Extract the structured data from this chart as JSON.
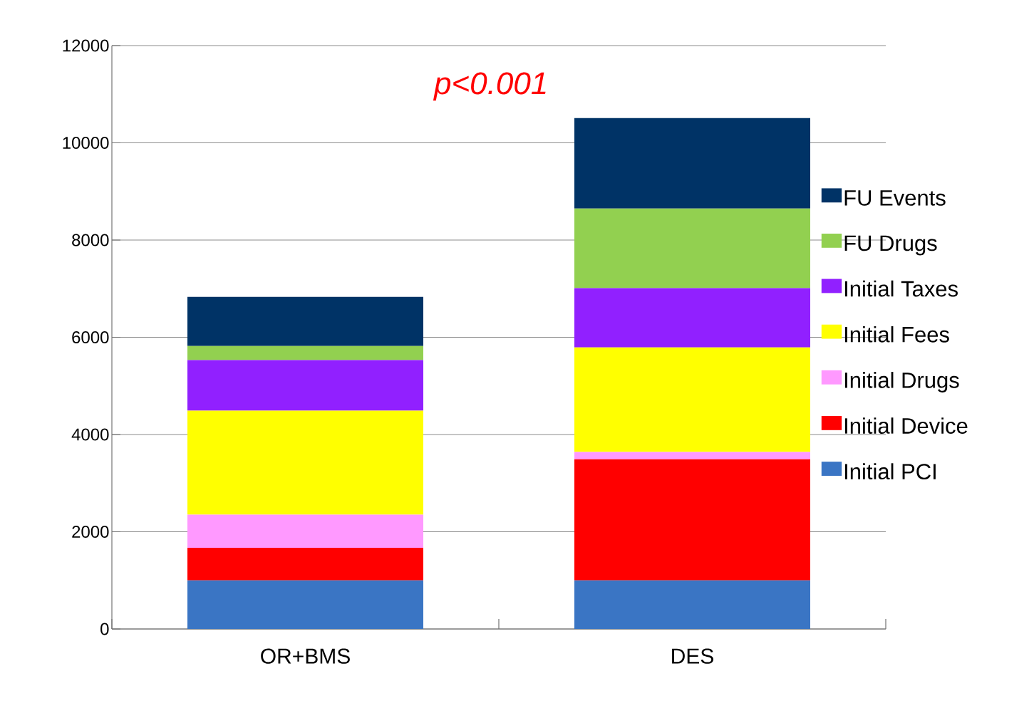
{
  "chart_data": {
    "type": "bar",
    "stacked": true,
    "categories": [
      "OR+BMS",
      "DES"
    ],
    "series": [
      {
        "name": "Initial PCI",
        "color": "#3a75c4",
        "values": [
          1000,
          1000
        ]
      },
      {
        "name": "Initial Device",
        "color": "#ff0000",
        "values": [
          670,
          2490
        ]
      },
      {
        "name": "Initial Drugs",
        "color": "#ff99ff",
        "values": [
          680,
          150
        ]
      },
      {
        "name": "Initial Fees",
        "color": "#ffff00",
        "values": [
          2140,
          2150
        ]
      },
      {
        "name": "Initial Taxes",
        "color": "#9120ff",
        "values": [
          1040,
          1220
        ]
      },
      {
        "name": "FU Drugs",
        "color": "#92d050",
        "values": [
          290,
          1640
        ]
      },
      {
        "name": "FU Events",
        "color": "#003366",
        "values": [
          1010,
          1860
        ]
      }
    ],
    "ylim": [
      0,
      12000
    ],
    "yticks": [
      0,
      2000,
      4000,
      6000,
      8000,
      10000,
      12000
    ],
    "grid": "y",
    "legend": "right",
    "annotations": [
      "p<0.001"
    ]
  }
}
